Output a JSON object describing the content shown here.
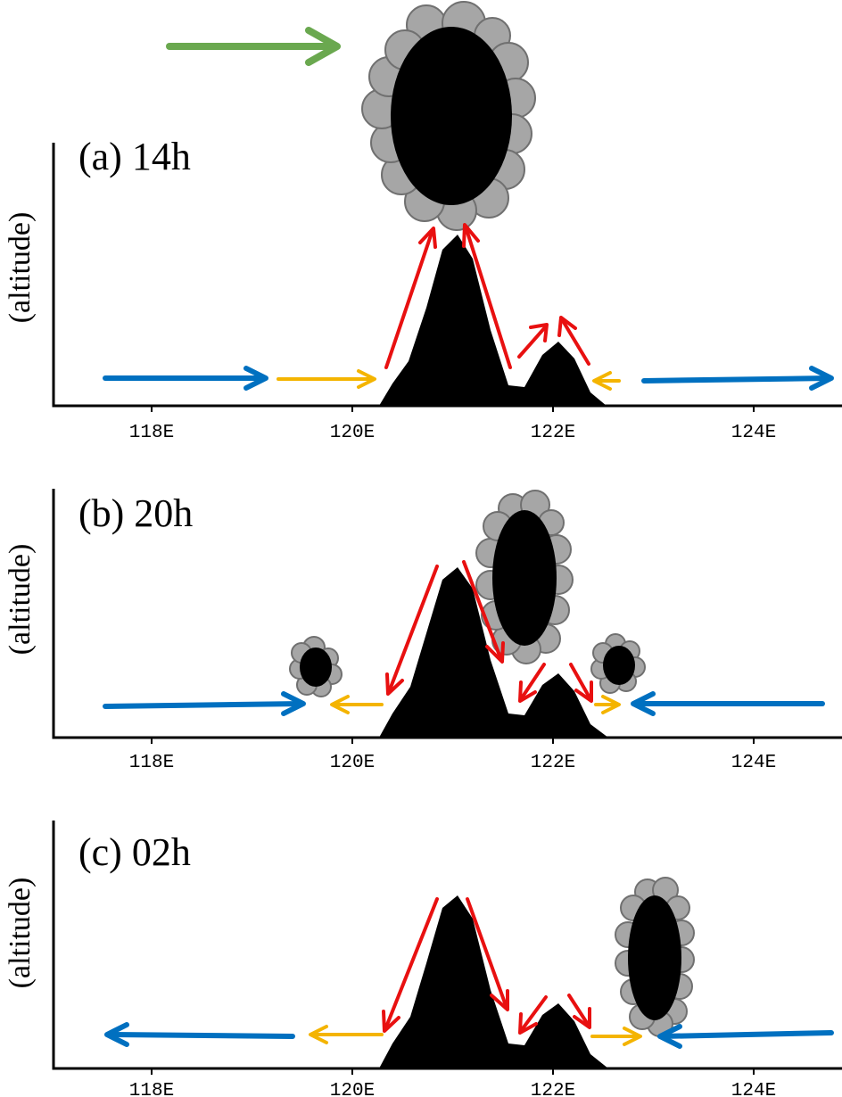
{
  "panels": [
    {
      "title": "(a) 14h",
      "ylabel": "(altitude)",
      "ticks": [
        "118E",
        "120E",
        "122E",
        "124E"
      ]
    },
    {
      "title": "(b) 20h",
      "ylabel": "(altitude)",
      "ticks": [
        "118E",
        "120E",
        "122E",
        "124E"
      ]
    },
    {
      "title": "(c) 02h",
      "ylabel": "(altitude)",
      "ticks": [
        "118E",
        "120E",
        "122E",
        "124E"
      ]
    }
  ],
  "colors": {
    "synoptic_wind": "#6aa84f",
    "large_scale_flow": "#0070c0",
    "sea_breeze_flow": "#f4b400",
    "slope_flow": "#e81010",
    "terrain": "#000000",
    "cloud": "#a6a6a6"
  }
}
